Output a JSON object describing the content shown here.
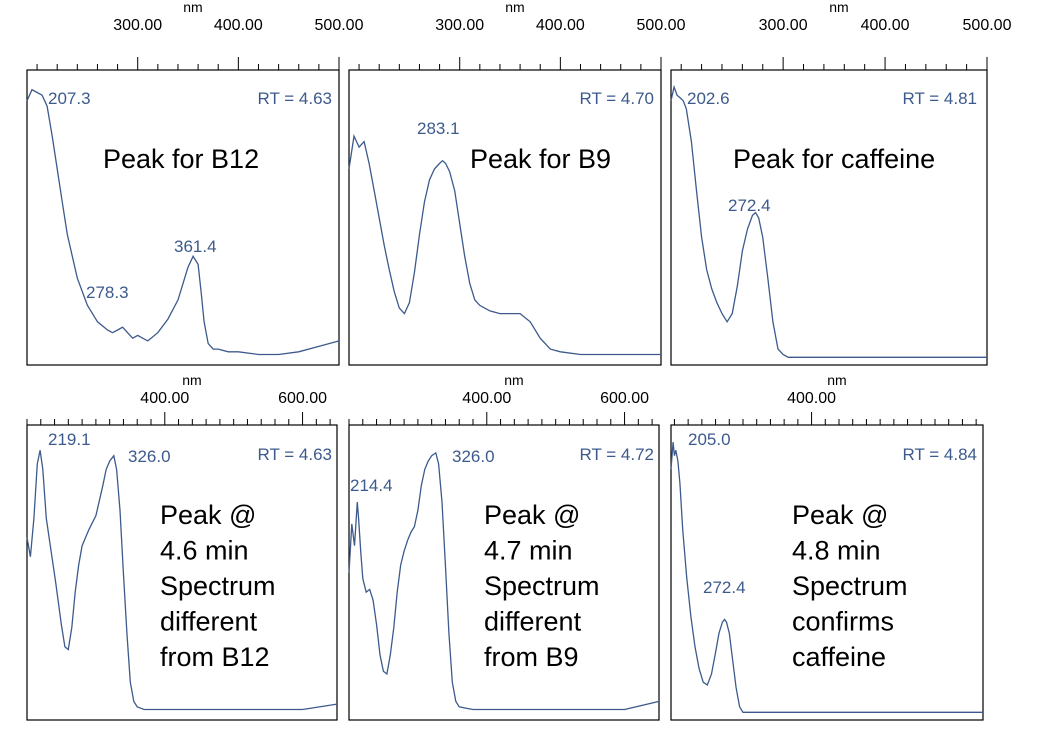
{
  "colors": {
    "trace": "#3d5a8c",
    "label": "#3d5a8c",
    "frame": "#000000"
  },
  "chart_data": [
    {
      "type": "line",
      "panel": "top-left",
      "unit": "nm",
      "xlim": [
        190,
        500
      ],
      "ticks": [
        {
          "value": 300,
          "label": "300.00"
        },
        {
          "value": 400,
          "label": "400.00"
        },
        {
          "value": 500,
          "label": "500.00"
        }
      ],
      "retention_label": "RT = 4.63",
      "annotation": [
        "Peak for B12"
      ],
      "peaks": [
        {
          "x": 207.3,
          "label": "207.3"
        },
        {
          "x": 278.3,
          "label": "278.3"
        },
        {
          "x": 361.4,
          "label": "361.4"
        }
      ],
      "series": [
        {
          "x": [
            190,
            195,
            200,
            205,
            210,
            215,
            220,
            225,
            230,
            240,
            250,
            260,
            270,
            275,
            280,
            285,
            290,
            295,
            300,
            305,
            310,
            320,
            330,
            340,
            345,
            350,
            355,
            360,
            363,
            366,
            370,
            375,
            380,
            390,
            400,
            420,
            440,
            460,
            480,
            500
          ],
          "y": [
            0.95,
            0.99,
            0.98,
            0.97,
            0.93,
            0.82,
            0.7,
            0.58,
            0.46,
            0.3,
            0.2,
            0.14,
            0.11,
            0.1,
            0.11,
            0.12,
            0.1,
            0.08,
            0.09,
            0.08,
            0.07,
            0.1,
            0.15,
            0.22,
            0.28,
            0.34,
            0.38,
            0.35,
            0.25,
            0.14,
            0.06,
            0.04,
            0.04,
            0.03,
            0.03,
            0.02,
            0.02,
            0.03,
            0.05,
            0.07
          ]
        }
      ]
    },
    {
      "type": "line",
      "panel": "top-middle",
      "unit": "nm",
      "xlim": [
        190,
        500
      ],
      "ticks": [
        {
          "value": 300,
          "label": "300.00"
        },
        {
          "value": 400,
          "label": "400.00"
        },
        {
          "value": 500,
          "label": "500.00"
        }
      ],
      "retention_label": "RT = 4.70",
      "annotation": [
        "Peak for B9"
      ],
      "peaks": [
        {
          "x": 283.1,
          "label": "283.1"
        }
      ],
      "series": [
        {
          "x": [
            190,
            195,
            200,
            205,
            210,
            215,
            220,
            225,
            230,
            235,
            240,
            245,
            250,
            255,
            260,
            265,
            270,
            275,
            280,
            283,
            286,
            290,
            295,
            300,
            305,
            310,
            315,
            320,
            330,
            340,
            350,
            360,
            370,
            380,
            390,
            400,
            420,
            440,
            460,
            480,
            500
          ],
          "y": [
            0.7,
            0.82,
            0.78,
            0.8,
            0.72,
            0.62,
            0.52,
            0.42,
            0.33,
            0.25,
            0.19,
            0.17,
            0.21,
            0.32,
            0.46,
            0.58,
            0.66,
            0.7,
            0.72,
            0.73,
            0.72,
            0.69,
            0.62,
            0.5,
            0.38,
            0.28,
            0.22,
            0.2,
            0.18,
            0.17,
            0.17,
            0.17,
            0.14,
            0.08,
            0.04,
            0.03,
            0.02,
            0.02,
            0.02,
            0.02,
            0.02
          ]
        }
      ]
    },
    {
      "type": "line",
      "panel": "top-right",
      "unit": "nm",
      "xlim": [
        190,
        500
      ],
      "ticks": [
        {
          "value": 300,
          "label": "300.00"
        },
        {
          "value": 400,
          "label": "400.00"
        },
        {
          "value": 500,
          "label": "500.00"
        }
      ],
      "retention_label": "RT = 4.81",
      "annotation": [
        "Peak for caffeine"
      ],
      "peaks": [
        {
          "x": 202.6,
          "label": "202.6"
        },
        {
          "x": 272.4,
          "label": "272.4"
        }
      ],
      "series": [
        {
          "x": [
            190,
            193,
            196,
            199,
            202,
            205,
            210,
            215,
            220,
            225,
            230,
            235,
            240,
            245,
            250,
            255,
            260,
            265,
            270,
            273,
            276,
            280,
            285,
            290,
            295,
            300,
            305,
            310,
            320,
            340,
            360,
            380,
            400,
            420,
            440,
            460,
            480,
            500
          ],
          "y": [
            0.95,
            1.0,
            0.97,
            0.96,
            0.95,
            0.92,
            0.8,
            0.62,
            0.45,
            0.33,
            0.26,
            0.21,
            0.17,
            0.14,
            0.17,
            0.27,
            0.4,
            0.48,
            0.53,
            0.54,
            0.52,
            0.45,
            0.3,
            0.14,
            0.04,
            0.02,
            0.01,
            0.01,
            0.01,
            0.01,
            0.01,
            0.01,
            0.01,
            0.01,
            0.01,
            0.01,
            0.01,
            0.01
          ]
        }
      ]
    },
    {
      "type": "line",
      "panel": "bottom-left",
      "unit": "nm",
      "xlim": [
        200,
        650
      ],
      "ticks": [
        {
          "value": 400,
          "label": "400.00"
        },
        {
          "value": 600,
          "label": "600.00"
        }
      ],
      "retention_label": "RT = 4.63",
      "annotation": [
        "Peak @",
        "4.6 min",
        "Spectrum",
        "different",
        "from B12"
      ],
      "peaks": [
        {
          "x": 219.1,
          "label": "219.1"
        },
        {
          "x": 326.0,
          "label": "326.0"
        }
      ],
      "series": [
        {
          "x": [
            200,
            205,
            210,
            215,
            219,
            223,
            228,
            235,
            242,
            250,
            255,
            260,
            265,
            270,
            275,
            280,
            290,
            300,
            310,
            315,
            320,
            326,
            330,
            335,
            340,
            345,
            350,
            355,
            360,
            365,
            370,
            380,
            400,
            450,
            500,
            550,
            600,
            650
          ],
          "y": [
            0.65,
            0.58,
            0.72,
            0.92,
            0.97,
            0.9,
            0.72,
            0.6,
            0.48,
            0.33,
            0.25,
            0.24,
            0.32,
            0.45,
            0.55,
            0.62,
            0.68,
            0.73,
            0.84,
            0.9,
            0.93,
            0.95,
            0.9,
            0.75,
            0.52,
            0.3,
            0.12,
            0.05,
            0.03,
            0.025,
            0.02,
            0.02,
            0.02,
            0.02,
            0.02,
            0.02,
            0.02,
            0.04
          ]
        }
      ]
    },
    {
      "type": "line",
      "panel": "bottom-middle",
      "unit": "nm",
      "xlim": [
        200,
        650
      ],
      "ticks": [
        {
          "value": 400,
          "label": "400.00"
        },
        {
          "value": 600,
          "label": "600.00"
        }
      ],
      "retention_label": "RT = 4.72",
      "annotation": [
        "Peak @",
        "4.7 min",
        "Spectrum",
        "different",
        "from B9"
      ],
      "peaks": [
        {
          "x": 214.4,
          "label": "214.4"
        },
        {
          "x": 326.0,
          "label": "326.0"
        }
      ],
      "series": [
        {
          "x": [
            200,
            204,
            208,
            212,
            214,
            217,
            220,
            225,
            230,
            235,
            240,
            245,
            250,
            255,
            260,
            265,
            270,
            275,
            280,
            285,
            290,
            295,
            300,
            305,
            310,
            315,
            320,
            326,
            330,
            335,
            340,
            345,
            350,
            355,
            360,
            370,
            380,
            400,
            450,
            500,
            550,
            600,
            650
          ],
          "y": [
            0.52,
            0.7,
            0.62,
            0.78,
            0.72,
            0.6,
            0.5,
            0.45,
            0.46,
            0.42,
            0.33,
            0.22,
            0.16,
            0.15,
            0.22,
            0.32,
            0.45,
            0.55,
            0.6,
            0.64,
            0.67,
            0.69,
            0.75,
            0.84,
            0.9,
            0.93,
            0.95,
            0.96,
            0.92,
            0.78,
            0.55,
            0.3,
            0.12,
            0.05,
            0.03,
            0.025,
            0.02,
            0.02,
            0.02,
            0.02,
            0.02,
            0.02,
            0.05
          ]
        }
      ]
    },
    {
      "type": "line",
      "panel": "bottom-right",
      "unit": "nm",
      "xlim": [
        195,
        650
      ],
      "ticks": [
        {
          "value": 400,
          "label": "400.00"
        }
      ],
      "retention_label": "RT = 4.84",
      "annotation": [
        "Peak @",
        "4.8 min",
        "Spectrum",
        "confirms",
        "caffeine"
      ],
      "peaks": [
        {
          "x": 205.0,
          "label": "205.0"
        },
        {
          "x": 272.4,
          "label": "272.4"
        }
      ],
      "series": [
        {
          "x": [
            195,
            198,
            200,
            202,
            205,
            208,
            212,
            218,
            224,
            230,
            236,
            242,
            248,
            254,
            260,
            265,
            270,
            273,
            276,
            280,
            285,
            290,
            295,
            300,
            305,
            310,
            320,
            350,
            400,
            450,
            500,
            550,
            600,
            650
          ],
          "y": [
            0.9,
            1.0,
            0.95,
            0.97,
            0.93,
            0.85,
            0.68,
            0.5,
            0.36,
            0.25,
            0.17,
            0.12,
            0.11,
            0.15,
            0.23,
            0.3,
            0.34,
            0.35,
            0.34,
            0.3,
            0.2,
            0.1,
            0.03,
            0.01,
            0.01,
            0.01,
            0.01,
            0.01,
            0.01,
            0.01,
            0.01,
            0.01,
            0.01,
            0.01
          ]
        }
      ]
    }
  ]
}
